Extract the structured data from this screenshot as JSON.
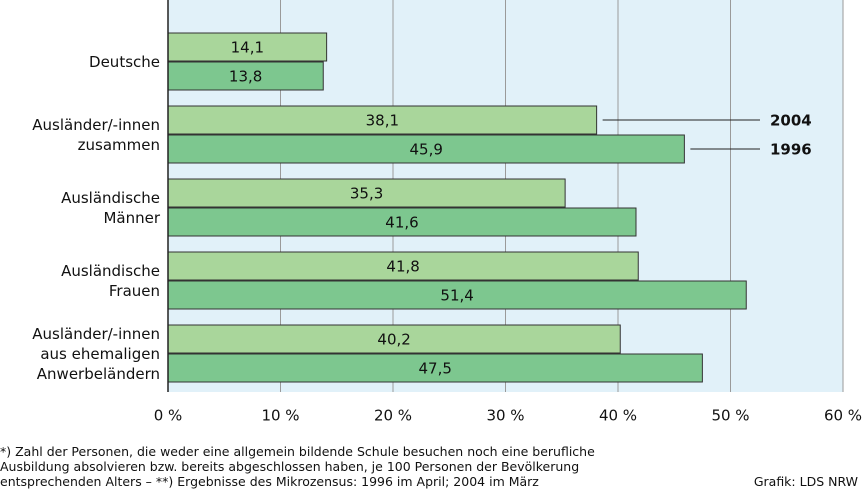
{
  "chart_data": {
    "type": "barh",
    "categories": [
      "Deutsche",
      "Ausländer/-innen\nzusammen",
      "Ausländische\nMänner",
      "Ausländische\nFrauen",
      "Ausländer/-innen\naus ehemaligen\nAnwerbeländern"
    ],
    "series": [
      {
        "name": "2004",
        "color": "#a9d69b",
        "values": [
          14.1,
          38.1,
          35.3,
          41.8,
          40.2
        ],
        "value_labels": [
          "14,1",
          "38,1",
          "35,3",
          "41,8",
          "40,2"
        ]
      },
      {
        "name": "1996",
        "color": "#7dc78f",
        "values": [
          13.8,
          45.9,
          41.6,
          51.4,
          47.5
        ],
        "value_labels": [
          "13,8",
          "45,9",
          "41,6",
          "51,4",
          "47,5"
        ]
      }
    ],
    "xlim": [
      0,
      60
    ],
    "xticks": [
      {
        "value": 0,
        "label": "0 %"
      },
      {
        "value": 10,
        "label": "10 %"
      },
      {
        "value": 20,
        "label": "20 %"
      },
      {
        "value": 30,
        "label": "30 %"
      },
      {
        "value": 40,
        "label": "40 %"
      },
      {
        "value": 50,
        "label": "50 %"
      },
      {
        "value": 60,
        "label": "60 %"
      }
    ],
    "grid": true,
    "footnote": "*) Zahl der Personen, die weder eine allgemein bildende Schule besuchen noch eine berufliche\nAusbildung absolvieren bzw. bereits abgeschlossen haben, je 100 Personen der Bevölkerung\nentsprechenden Alters – **) Ergebnisse des Mikrozensus: 1996 im April; 2004 im März",
    "source": "Grafik: LDS NRW"
  }
}
